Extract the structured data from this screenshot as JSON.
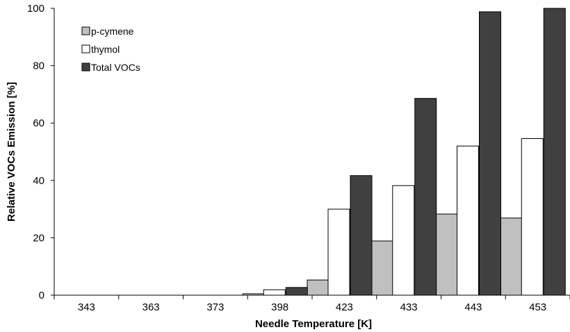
{
  "chart_data": {
    "type": "bar",
    "title": "",
    "xlabel": "Needle Temperature [K]",
    "ylabel": "Relative VOCs Emission [%]",
    "ylim": [
      0,
      100
    ],
    "yticks": [
      0,
      20,
      40,
      60,
      80,
      100
    ],
    "grid": false,
    "legend_position": "top-left",
    "categories": [
      "343",
      "363",
      "373",
      "398",
      "423",
      "433",
      "443",
      "453"
    ],
    "series": [
      {
        "name": "p-cymene",
        "color": "#c0c0c0",
        "values": [
          0,
          0,
          0,
          0.5,
          5.3,
          18.9,
          28.3,
          26.9
        ]
      },
      {
        "name": "thymol",
        "color": "#ffffff",
        "values": [
          0,
          0,
          0,
          1.9,
          30.0,
          38.2,
          52.0,
          54.6
        ]
      },
      {
        "name": "Total VOCs",
        "color": "#404040",
        "values": [
          0,
          0,
          0,
          2.7,
          41.7,
          68.6,
          98.8,
          100
        ]
      }
    ]
  }
}
